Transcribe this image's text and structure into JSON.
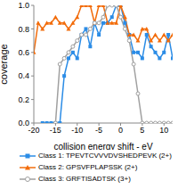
{
  "chart_data": {
    "type": "line",
    "x_label": "collision energy shift - eV",
    "y_label": "coverage",
    "xlim": [
      -20,
      12
    ],
    "xticks": [
      -20,
      -15,
      -10,
      -5,
      0,
      5,
      10
    ],
    "ylim": [
      0,
      1
    ],
    "yticks": [
      {
        "value": 0,
        "label": "0.0"
      },
      0.2,
      0.4,
      0.6,
      0.8,
      {
        "value": 1,
        "label": "1.0"
      }
    ],
    "grid": false,
    "legend": "bottom",
    "x": [
      -20,
      -19,
      -18,
      -17,
      -16,
      -15,
      -14,
      -13,
      -12,
      -11,
      -10,
      -9,
      -8,
      -7,
      -6,
      -5,
      -4,
      -3,
      -2,
      -1,
      0,
      1,
      2,
      3,
      4,
      5,
      6,
      7,
      8,
      9,
      10,
      11,
      12
    ],
    "series": [
      {
        "name": "Class 1: TPEVTCVVVDVSHEDPEVK (2+)",
        "color": "#2b8ce6",
        "marker": "square",
        "values": [
          null,
          null,
          0,
          0,
          0,
          0,
          0,
          0.4,
          0.55,
          0.6,
          0.55,
          0.75,
          0.8,
          0.65,
          0.85,
          0.75,
          0.85,
          0.85,
          0.9,
          1.0,
          1.0,
          0.85,
          0.75,
          0.6,
          0.6,
          0.55,
          0.75,
          0.65,
          0.6,
          0.55,
          0.6,
          0.75,
          0.55
        ]
      },
      {
        "name": "Class 2: GPSVFPLAPSSK (2+)",
        "color": "#f26c0b",
        "marker": "triangle",
        "values": [
          0.6,
          0.85,
          0.8,
          0.85,
          0.85,
          0.9,
          0.85,
          0.85,
          0.8,
          0.85,
          0.9,
          1.0,
          1.0,
          1.0,
          0.85,
          1.0,
          1.0,
          0.85,
          0.85,
          0.85,
          1.0,
          0.9,
          0.75,
          0.75,
          0.7,
          0.8,
          0.8,
          0.7,
          0.75,
          0.7,
          0.75,
          0.7,
          0.75
        ]
      },
      {
        "name": "Class 3: GRFTISADTSK (3+)",
        "color": "#a0a0a0",
        "marker": "circle",
        "values": [
          null,
          null,
          null,
          null,
          null,
          0,
          0.5,
          0.55,
          0.6,
          0.65,
          0.7,
          0.75,
          0.75,
          0.8,
          0.85,
          0.85,
          0.9,
          1.0,
          1.0,
          1.0,
          0.9,
          0.8,
          0.7,
          0.5,
          0.25,
          0,
          0,
          0,
          0,
          0,
          0,
          0,
          0
        ]
      }
    ]
  }
}
